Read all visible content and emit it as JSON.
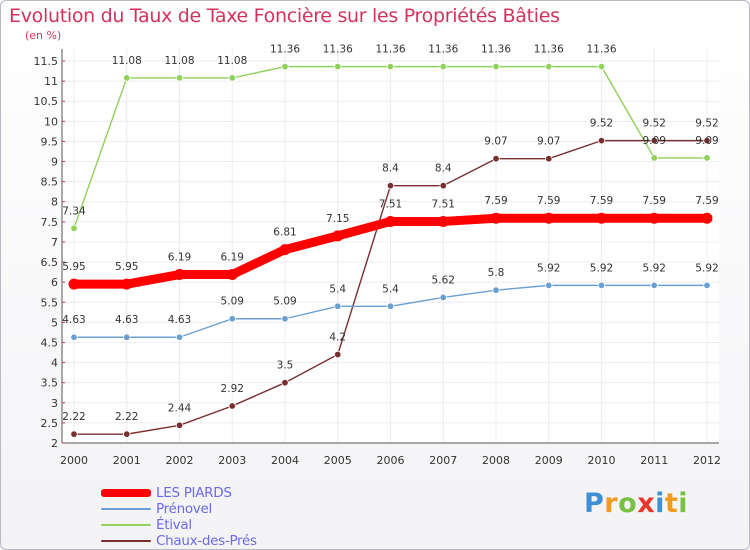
{
  "chart_data": {
    "type": "line",
    "title": "Evolution du Taux de Taxe Foncière sur les Propriétés Bâties",
    "ylabel": "(en %)",
    "xlabel": "",
    "x": [
      "2000",
      "2001",
      "2002",
      "2003",
      "2004",
      "2005",
      "2006",
      "2007",
      "2008",
      "2009",
      "2010",
      "2011",
      "2012"
    ],
    "ylim": [
      2,
      11.5
    ],
    "y_ticks": [
      "2",
      "2.5",
      "3",
      "3.5",
      "4",
      "4.5",
      "5",
      "5.5",
      "6",
      "6.5",
      "7",
      "7.5",
      "8",
      "8.5",
      "9",
      "9.5",
      "10",
      "10.5",
      "11",
      "11.5"
    ],
    "series": [
      {
        "name": "LES PIARDS",
        "color": "#ff0000",
        "values": [
          5.95,
          5.95,
          6.19,
          6.19,
          6.81,
          7.15,
          7.51,
          7.51,
          7.59,
          7.59,
          7.59,
          7.59,
          7.59
        ],
        "labels": [
          "5.95",
          "5.95",
          "6.19",
          "6.19",
          "6.81",
          "7.15",
          "7.51",
          "7.51",
          "7.59",
          "7.59",
          "7.59",
          "7.59",
          "7.59"
        ]
      },
      {
        "name": "Prénovel",
        "color": "#6a9fd2",
        "values": [
          4.63,
          4.63,
          4.63,
          5.09,
          5.09,
          5.4,
          5.4,
          5.62,
          5.8,
          5.92,
          5.92,
          5.92,
          5.92
        ],
        "labels": [
          "4.63",
          "4.63",
          "4.63",
          "5.09",
          "5.09",
          "5.4",
          "5.4",
          "5.62",
          "5.8",
          "5.92",
          "5.92",
          "5.92",
          "5.92"
        ]
      },
      {
        "name": "Étival",
        "color": "#8fd15a",
        "values": [
          7.34,
          11.08,
          11.08,
          11.08,
          11.36,
          11.36,
          11.36,
          11.36,
          11.36,
          11.36,
          11.36,
          9.09,
          9.09
        ],
        "labels": [
          "7.34",
          "11.08",
          "11.08",
          "11.08",
          "11.36",
          "11.36",
          "11.36",
          "11.36",
          "11.36",
          "11.36",
          "11.36",
          "9.09",
          "9.09"
        ]
      },
      {
        "name": "Chaux-des-Prés",
        "color": "#7a2f2f",
        "values": [
          2.22,
          2.22,
          2.44,
          2.92,
          3.5,
          4.2,
          8.4,
          8.4,
          9.07,
          9.07,
          9.52,
          9.52,
          9.52
        ],
        "labels": [
          "2.22",
          "2.22",
          "2.44",
          "2.92",
          "3.5",
          "4.2",
          "8.4",
          "8.4",
          "9.07",
          "9.07",
          "9.52",
          "9.52",
          "9.52"
        ]
      }
    ]
  },
  "legend": {
    "items": [
      {
        "label": "LES PIARDS"
      },
      {
        "label": "Prénovel"
      },
      {
        "label": "Étival"
      },
      {
        "label": "Chaux-des-Prés"
      }
    ]
  },
  "brand": {
    "letters": [
      {
        "ch": "P",
        "color": "#3f8fd6"
      },
      {
        "ch": "r",
        "color": "#f09a1e"
      },
      {
        "ch": "o",
        "color": "#7ac043"
      },
      {
        "ch": "x",
        "color": "#e8362a"
      },
      {
        "ch": "i",
        "color": "#3f8fd6"
      },
      {
        "ch": "t",
        "color": "#f09a1e"
      },
      {
        "ch": "i",
        "color": "#7ac043"
      }
    ]
  }
}
